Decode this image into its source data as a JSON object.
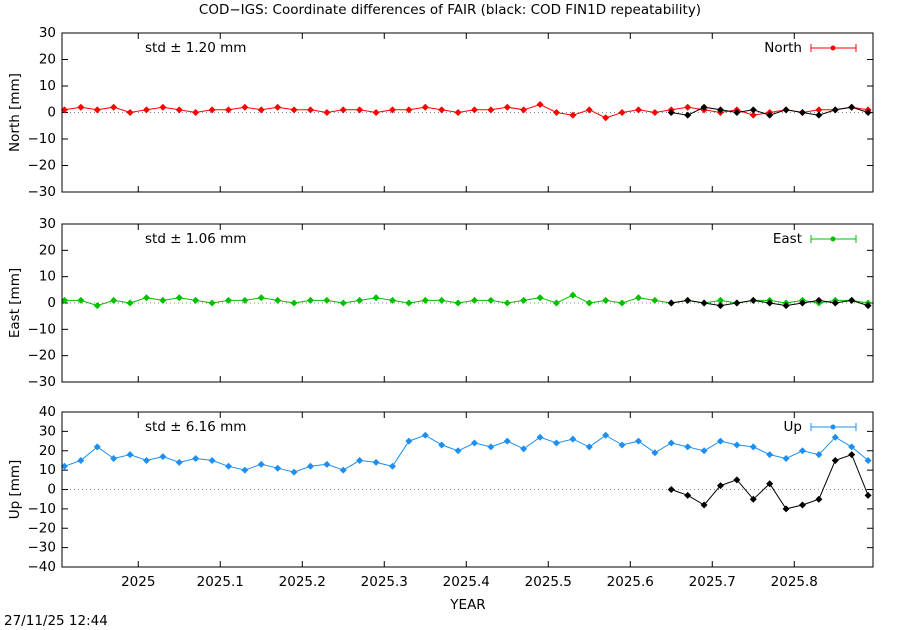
{
  "title": "COD−IGS: Coordinate differences of FAIR (black: COD FIN1D repeatability)",
  "xlabel": "YEAR",
  "timestamp": "27/11/25 12:44",
  "chart_data": [
    {
      "type": "line",
      "ylabel": "North [mm]",
      "annotation": "std ± 1.20 mm",
      "zero_line": true,
      "xlim": [
        2024.907,
        2025.896
      ],
      "xticks": [
        2025,
        2025.1,
        2025.2,
        2025.3,
        2025.4,
        2025.5,
        2025.6,
        2025.7,
        2025.8
      ],
      "ylim": [
        -30,
        30
      ],
      "yticks": [
        {
          "value": -30,
          "label": "−30"
        },
        {
          "value": -20,
          "label": "−20"
        },
        {
          "value": -10,
          "label": "−10"
        },
        0,
        10,
        20,
        30
      ],
      "series": [
        {
          "name": "North",
          "color": "#ff0000",
          "x": [
            2024.91,
            2024.93,
            2024.95,
            2024.97,
            2024.99,
            2025.01,
            2025.03,
            2025.05,
            2025.07,
            2025.09,
            2025.11,
            2025.13,
            2025.15,
            2025.17,
            2025.19,
            2025.21,
            2025.23,
            2025.25,
            2025.27,
            2025.29,
            2025.31,
            2025.33,
            2025.35,
            2025.37,
            2025.39,
            2025.41,
            2025.43,
            2025.45,
            2025.47,
            2025.49,
            2025.51,
            2025.53,
            2025.55,
            2025.57,
            2025.59,
            2025.61,
            2025.63,
            2025.65,
            2025.67,
            2025.69,
            2025.71,
            2025.73,
            2025.75,
            2025.77,
            2025.79,
            2025.81,
            2025.83,
            2025.85,
            2025.87,
            2025.89
          ],
          "values": [
            1,
            2,
            1,
            2,
            0,
            1,
            2,
            1,
            0,
            1,
            1,
            2,
            1,
            2,
            1,
            1,
            0,
            1,
            1,
            0,
            1,
            1,
            2,
            1,
            0,
            1,
            1,
            2,
            1,
            3,
            0,
            -1,
            1,
            -2,
            0,
            1,
            0,
            1,
            2,
            1,
            0,
            1,
            -1,
            0,
            1,
            0,
            1,
            1,
            2,
            1
          ]
        },
        {
          "color": "#000000",
          "x": [
            2025.65,
            2025.67,
            2025.69,
            2025.71,
            2025.73,
            2025.75,
            2025.77,
            2025.79,
            2025.81,
            2025.83,
            2025.85,
            2025.87,
            2025.89
          ],
          "values": [
            0,
            -1,
            2,
            1,
            0,
            1,
            -1,
            1,
            0,
            -1,
            1,
            2,
            0
          ]
        }
      ]
    },
    {
      "type": "line",
      "ylabel": "East [mm]",
      "annotation": "std ± 1.06 mm",
      "zero_line": true,
      "xlim": [
        2024.907,
        2025.896
      ],
      "xticks": [
        2025,
        2025.1,
        2025.2,
        2025.3,
        2025.4,
        2025.5,
        2025.6,
        2025.7,
        2025.8
      ],
      "ylim": [
        -30,
        30
      ],
      "yticks": [
        {
          "value": -30,
          "label": "−30"
        },
        {
          "value": -20,
          "label": "−20"
        },
        {
          "value": -10,
          "label": "−10"
        },
        0,
        10,
        20,
        30
      ],
      "series": [
        {
          "name": "East",
          "color": "#00c000",
          "x": [
            2024.91,
            2024.93,
            2024.95,
            2024.97,
            2024.99,
            2025.01,
            2025.03,
            2025.05,
            2025.07,
            2025.09,
            2025.11,
            2025.13,
            2025.15,
            2025.17,
            2025.19,
            2025.21,
            2025.23,
            2025.25,
            2025.27,
            2025.29,
            2025.31,
            2025.33,
            2025.35,
            2025.37,
            2025.39,
            2025.41,
            2025.43,
            2025.45,
            2025.47,
            2025.49,
            2025.51,
            2025.53,
            2025.55,
            2025.57,
            2025.59,
            2025.61,
            2025.63,
            2025.65,
            2025.67,
            2025.69,
            2025.71,
            2025.73,
            2025.75,
            2025.77,
            2025.79,
            2025.81,
            2025.83,
            2025.85,
            2025.87,
            2025.89
          ],
          "values": [
            1,
            1,
            -1,
            1,
            0,
            2,
            1,
            2,
            1,
            0,
            1,
            1,
            2,
            1,
            0,
            1,
            1,
            0,
            1,
            2,
            1,
            0,
            1,
            1,
            0,
            1,
            1,
            0,
            1,
            2,
            0,
            3,
            0,
            1,
            0,
            2,
            1,
            0,
            1,
            0,
            1,
            0,
            1,
            1,
            0,
            1,
            0,
            1,
            1,
            0
          ]
        },
        {
          "color": "#000000",
          "x": [
            2025.65,
            2025.67,
            2025.69,
            2025.71,
            2025.73,
            2025.75,
            2025.77,
            2025.79,
            2025.81,
            2025.83,
            2025.85,
            2025.87,
            2025.89
          ],
          "values": [
            0,
            1,
            0,
            -1,
            0,
            1,
            0,
            -1,
            0,
            1,
            0,
            1,
            -1
          ]
        }
      ]
    },
    {
      "type": "line",
      "ylabel": "Up [mm]",
      "annotation": "std ± 6.16 mm",
      "zero_line": true,
      "xlim": [
        2024.907,
        2025.896
      ],
      "xticks": [
        2025,
        2025.1,
        2025.2,
        2025.3,
        2025.4,
        2025.5,
        2025.6,
        2025.7,
        2025.8
      ],
      "ylim": [
        -40,
        40
      ],
      "yticks": [
        {
          "value": -40,
          "label": "−40"
        },
        {
          "value": -30,
          "label": "−30"
        },
        {
          "value": -20,
          "label": "−20"
        },
        {
          "value": -10,
          "label": "−10"
        },
        0,
        10,
        20,
        30,
        40
      ],
      "series": [
        {
          "name": "Up",
          "color": "#1e8ff0",
          "x": [
            2024.91,
            2024.93,
            2024.95,
            2024.97,
            2024.99,
            2025.01,
            2025.03,
            2025.05,
            2025.07,
            2025.09,
            2025.11,
            2025.13,
            2025.15,
            2025.17,
            2025.19,
            2025.21,
            2025.23,
            2025.25,
            2025.27,
            2025.29,
            2025.31,
            2025.33,
            2025.35,
            2025.37,
            2025.39,
            2025.41,
            2025.43,
            2025.45,
            2025.47,
            2025.49,
            2025.51,
            2025.53,
            2025.55,
            2025.57,
            2025.59,
            2025.61,
            2025.63,
            2025.65,
            2025.67,
            2025.69,
            2025.71,
            2025.73,
            2025.75,
            2025.77,
            2025.79,
            2025.81,
            2025.83,
            2025.85,
            2025.87,
            2025.89
          ],
          "values": [
            12,
            15,
            22,
            16,
            18,
            15,
            17,
            14,
            16,
            15,
            12,
            10,
            13,
            11,
            9,
            12,
            13,
            10,
            15,
            14,
            12,
            25,
            28,
            23,
            20,
            24,
            22,
            25,
            21,
            27,
            24,
            26,
            22,
            28,
            23,
            25,
            19,
            24,
            22,
            20,
            25,
            23,
            22,
            18,
            16,
            20,
            18,
            27,
            22,
            15
          ]
        },
        {
          "color": "#000000",
          "x": [
            2025.65,
            2025.67,
            2025.69,
            2025.71,
            2025.73,
            2025.75,
            2025.77,
            2025.79,
            2025.81,
            2025.83,
            2025.85,
            2025.87,
            2025.89
          ],
          "values": [
            0,
            -3,
            -8,
            2,
            5,
            -5,
            3,
            -10,
            -8,
            -5,
            15,
            18,
            -3
          ]
        }
      ]
    }
  ]
}
